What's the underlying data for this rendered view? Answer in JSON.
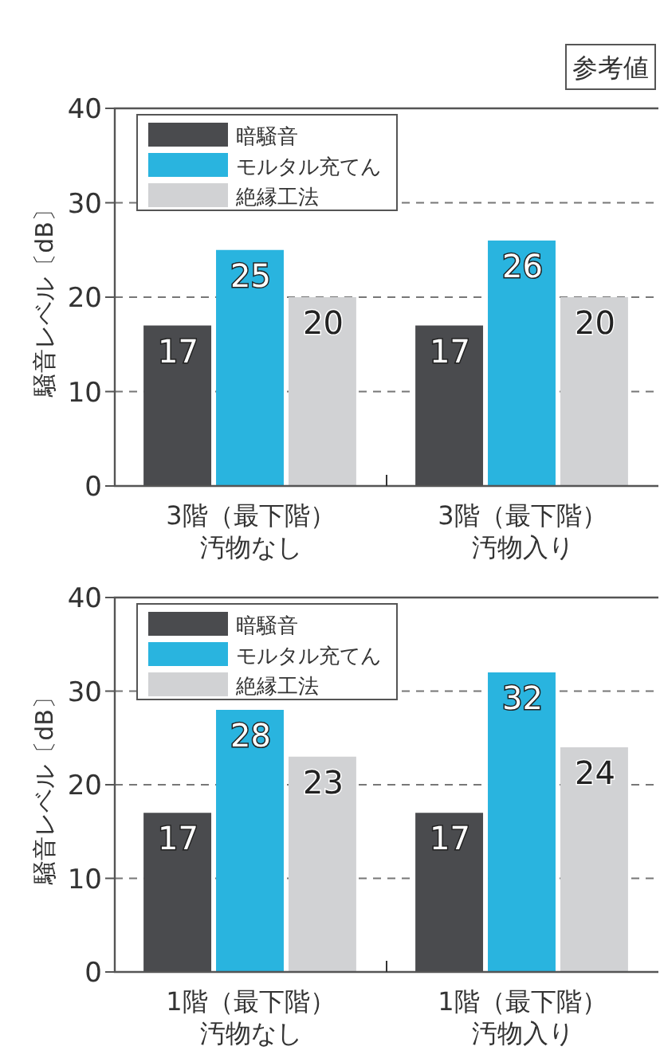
{
  "chart_data": [
    {
      "type": "bar",
      "annotations": [
        "参考値"
      ],
      "ylabel": "騒音レベル〔dB〕",
      "categories": [
        "3階（最下階）汚物なし",
        "3階（最下階）汚物入り"
      ],
      "series": [
        {
          "name": "暗騒音",
          "color": "#4a4b4e",
          "values": [
            17,
            17
          ]
        },
        {
          "name": "モルタル充てん",
          "color": "#29b4df",
          "values": [
            25,
            26
          ]
        },
        {
          "name": "絶縁工法",
          "color": "#d1d2d4",
          "values": [
            20,
            20
          ]
        }
      ],
      "ylim": [
        0,
        40
      ],
      "yticks": [
        0,
        10,
        20,
        30,
        40
      ],
      "grid": "y",
      "legend": "top left",
      "data_labels": true
    },
    {
      "type": "bar",
      "ylabel": "騒音レベル〔dB〕",
      "categories": [
        "1階（最下階）汚物なし",
        "1階（最下階）汚物入り"
      ],
      "series": [
        {
          "name": "暗騒音",
          "color": "#4a4b4e",
          "values": [
            17,
            17
          ]
        },
        {
          "name": "モルタル充てん",
          "color": "#29b4df",
          "values": [
            28,
            32
          ]
        },
        {
          "name": "絶縁工法",
          "color": "#d1d2d4",
          "values": [
            23,
            24
          ]
        }
      ],
      "ylim": [
        0,
        40
      ],
      "yticks": [
        0,
        10,
        20,
        30,
        40
      ],
      "grid": "y",
      "legend": "top left",
      "data_labels": true
    }
  ]
}
